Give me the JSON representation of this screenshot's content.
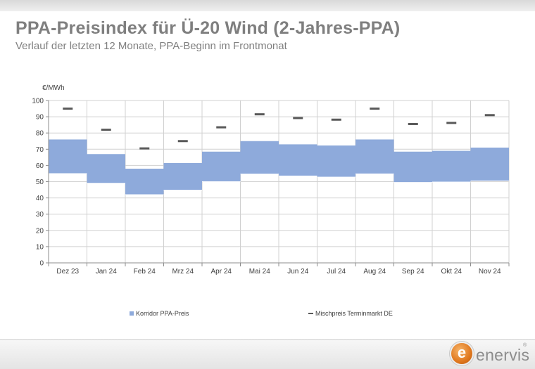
{
  "header": {
    "title": "PPA-Preisindex für Ü-20 Wind (2-Jahres-PPA)",
    "subtitle": "Verlauf der letzten 12 Monate, PPA-Beginn im Frontmonat"
  },
  "brand": {
    "logo_letter": "e",
    "logo_name": "enervis",
    "logo_reg": "®"
  },
  "chart_data": {
    "type": "bar",
    "title": "",
    "ylabel": "€/MWh",
    "xlabel": "",
    "ylim": [
      0,
      100
    ],
    "ytick_step": 10,
    "grid": true,
    "legend_position": "bottom",
    "categories": [
      "Dez 23",
      "Jan 24",
      "Feb 24",
      "Mrz 24",
      "Apr 24",
      "Mai 24",
      "Jun 24",
      "Jul 24",
      "Aug 24",
      "Sep 24",
      "Okt 24",
      "Nov 24"
    ],
    "series": [
      {
        "name": "Korridor PPA-Preis",
        "kind": "floating-range",
        "color": "#8eaadb",
        "low": [
          55.0,
          49.0,
          42.0,
          44.8,
          50.0,
          54.7,
          53.5,
          52.8,
          54.8,
          49.5,
          49.8,
          50.5
        ],
        "high": [
          76.0,
          67.0,
          58.0,
          61.5,
          68.5,
          75.0,
          73.0,
          72.3,
          76.0,
          68.5,
          69.0,
          71.0
        ]
      },
      {
        "name": "Mischpreis Terminmarkt DE",
        "kind": "marker",
        "color": "#595959",
        "values": [
          95.0,
          82.0,
          70.5,
          75.0,
          83.5,
          91.5,
          89.2,
          88.2,
          95.0,
          85.5,
          86.2,
          91.0
        ]
      }
    ]
  }
}
